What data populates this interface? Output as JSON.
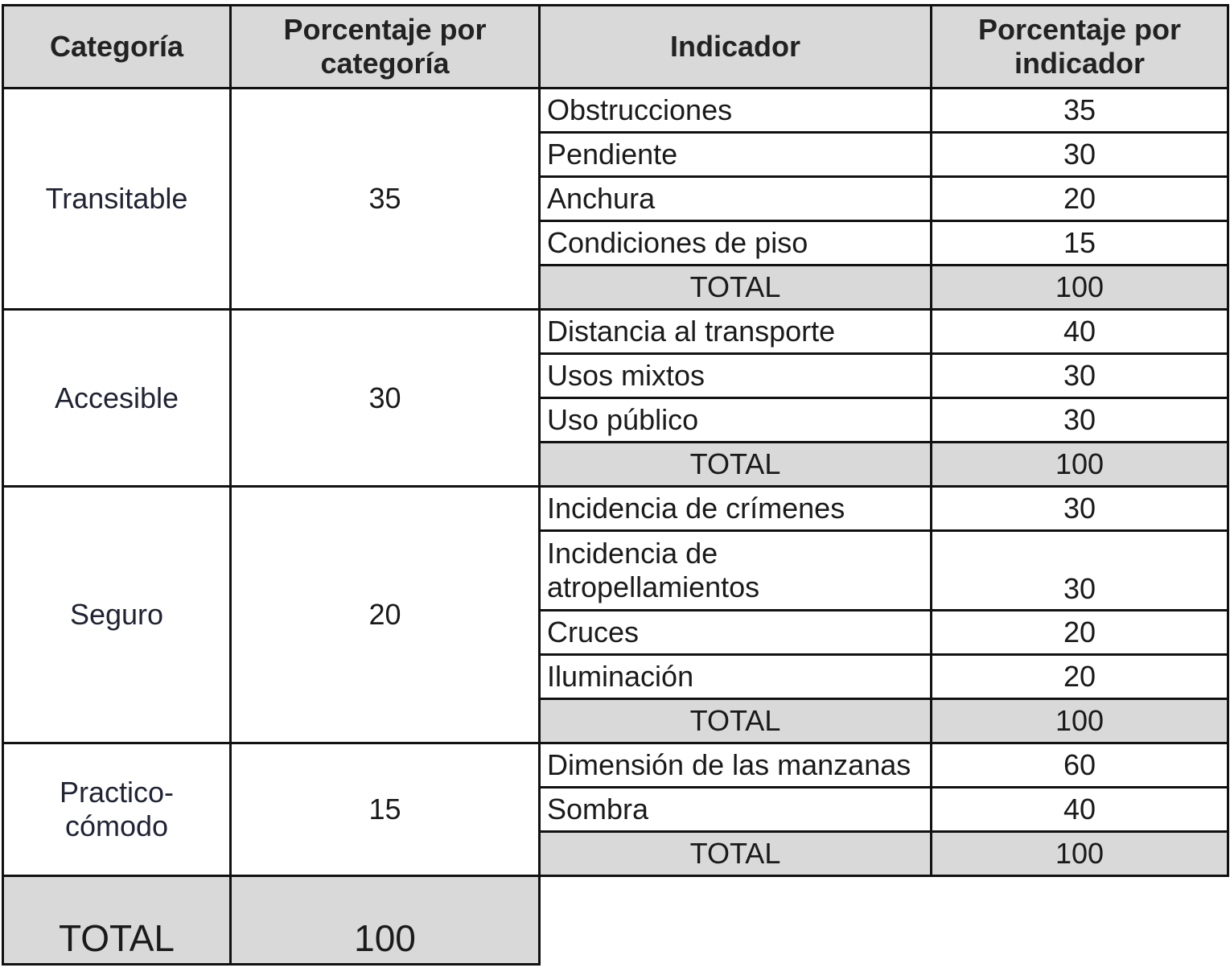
{
  "header": {
    "categoria": "Categoría",
    "porcentaje_categoria": [
      "Porcentaje por",
      "categoría"
    ],
    "indicador": "Indicador",
    "porcentaje_indicador": [
      "Porcentaje por",
      "indicador"
    ]
  },
  "groups": [
    {
      "categoria": "Transitable",
      "porcentaje": "35",
      "indicadores": [
        {
          "nombre": "Obstrucciones",
          "valor": "35"
        },
        {
          "nombre": "Pendiente",
          "valor": "30"
        },
        {
          "nombre": "Anchura",
          "valor": "20"
        },
        {
          "nombre": "Condiciones de piso",
          "valor": "15"
        }
      ],
      "total_label": "TOTAL",
      "total": "100"
    },
    {
      "categoria": "Accesible",
      "porcentaje": "30",
      "indicadores": [
        {
          "nombre": "Distancia al transporte",
          "valor": "40"
        },
        {
          "nombre": "Usos mixtos",
          "valor": "30"
        },
        {
          "nombre": "Uso público",
          "valor": "30"
        }
      ],
      "total_label": "TOTAL",
      "total": "100"
    },
    {
      "categoria": "Seguro",
      "porcentaje": "20",
      "indicadores": [
        {
          "nombre": "Incidencia de crímenes",
          "valor": "30"
        },
        {
          "nombre": "Incidencia de atropellamientos",
          "valor": "30"
        },
        {
          "nombre": "Cruces",
          "valor": "20"
        },
        {
          "nombre": "Iluminación",
          "valor": "20"
        }
      ],
      "total_label": "TOTAL",
      "total": "100"
    },
    {
      "categoria": [
        "Practico-",
        "cómodo"
      ],
      "porcentaje": "15",
      "indicadores": [
        {
          "nombre": "Dimensión de las manzanas",
          "valor": "60"
        },
        {
          "nombre": "Sombra",
          "valor": "40"
        }
      ],
      "total_label": "TOTAL",
      "total": "100"
    }
  ],
  "grand_total": {
    "label": "TOTAL",
    "value": "100"
  }
}
